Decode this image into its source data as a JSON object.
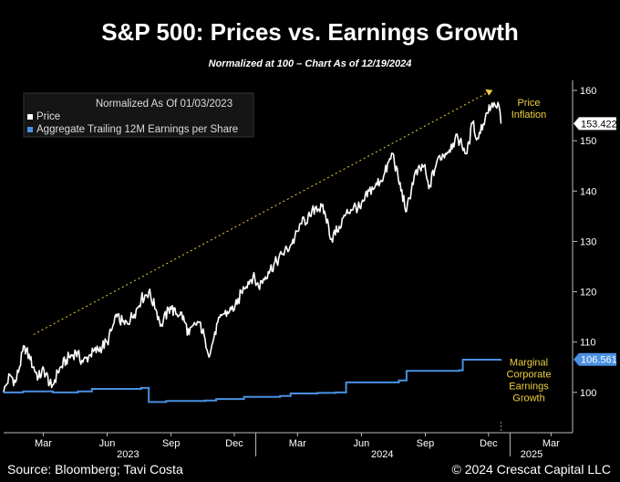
{
  "title": "S&P 500: Prices vs. Earnings Growth",
  "subtitle": "Normalized at 100 – Chart As of 12/19/2024",
  "footer": {
    "source": "Source: Bloomberg; Tavi Costa",
    "copyright": "© 2024 Crescat Capital LLC"
  },
  "colors": {
    "price": "#ffffff",
    "earnings": "#4a90e2",
    "annotation": "#f0d040",
    "background": "#000000"
  },
  "chart_data": {
    "type": "line",
    "legend": {
      "title": "Normalized As Of 01/03/2023",
      "position": "top-left",
      "entries": [
        {
          "name": "Price",
          "color": "#ffffff"
        },
        {
          "name": "Aggregate Trailing 12M Earnings per Share",
          "color": "#4a90e2"
        }
      ]
    },
    "ylim": [
      92,
      162
    ],
    "y_ticks": [
      100,
      110,
      120,
      130,
      140,
      150,
      160
    ],
    "xlim": [
      "2023-01-03",
      "2025-04-01"
    ],
    "x_ticks": [
      {
        "date": "2023-03-01",
        "label": "Mar"
      },
      {
        "date": "2023-06-01",
        "label": "Jun"
      },
      {
        "date": "2023-09-01",
        "label": "Sep"
      },
      {
        "date": "2023-12-01",
        "label": "Dec"
      },
      {
        "date": "2024-03-01",
        "label": "Mar"
      },
      {
        "date": "2024-06-01",
        "label": "Jun"
      },
      {
        "date": "2024-09-01",
        "label": "Sep"
      },
      {
        "date": "2024-12-01",
        "label": "Dec"
      },
      {
        "date": "2025-03-01",
        "label": "Mar"
      }
    ],
    "year_labels": [
      {
        "date": "2023-07-01",
        "label": "2023"
      },
      {
        "date": "2024-07-01",
        "label": "2024"
      },
      {
        "date": "2025-02-01",
        "label": "2025"
      }
    ],
    "year_separators": [
      "2024-01-01",
      "2025-01-01"
    ],
    "series": [
      {
        "name": "Price",
        "last_value_label": "153.4222",
        "points": [
          [
            "2023-01-03",
            100.0
          ],
          [
            "2023-01-12",
            103.5
          ],
          [
            "2023-01-20",
            102.0
          ],
          [
            "2023-02-02",
            109.2
          ],
          [
            "2023-02-10",
            106.5
          ],
          [
            "2023-02-22",
            103.0
          ],
          [
            "2023-03-02",
            104.5
          ],
          [
            "2023-03-13",
            101.0
          ],
          [
            "2023-03-22",
            104.0
          ],
          [
            "2023-04-03",
            106.5
          ],
          [
            "2023-04-17",
            108.0
          ],
          [
            "2023-04-27",
            106.0
          ],
          [
            "2023-05-08",
            107.5
          ],
          [
            "2023-05-19",
            108.5
          ],
          [
            "2023-06-01",
            110.0
          ],
          [
            "2023-06-15",
            115.0
          ],
          [
            "2023-06-26",
            113.5
          ],
          [
            "2023-07-10",
            115.5
          ],
          [
            "2023-07-20",
            118.5
          ],
          [
            "2023-07-31",
            120.0
          ],
          [
            "2023-08-10",
            116.5
          ],
          [
            "2023-08-18",
            113.5
          ],
          [
            "2023-08-31",
            117.0
          ],
          [
            "2023-09-08",
            115.5
          ],
          [
            "2023-09-15",
            116.0
          ],
          [
            "2023-09-27",
            111.5
          ],
          [
            "2023-10-06",
            113.5
          ],
          [
            "2023-10-12",
            114.0
          ],
          [
            "2023-10-20",
            110.5
          ],
          [
            "2023-10-27",
            107.5
          ],
          [
            "2023-11-03",
            112.0
          ],
          [
            "2023-11-14",
            115.5
          ],
          [
            "2023-11-24",
            116.0
          ],
          [
            "2023-12-05",
            117.5
          ],
          [
            "2023-12-14",
            121.0
          ],
          [
            "2023-12-28",
            123.0
          ],
          [
            "2024-01-05",
            121.0
          ],
          [
            "2024-01-19",
            124.0
          ],
          [
            "2024-01-31",
            126.0
          ],
          [
            "2024-02-09",
            127.5
          ],
          [
            "2024-02-22",
            129.5
          ],
          [
            "2024-03-07",
            133.5
          ],
          [
            "2024-03-19",
            135.0
          ],
          [
            "2024-03-28",
            137.0
          ],
          [
            "2024-04-09",
            136.0
          ],
          [
            "2024-04-19",
            130.5
          ],
          [
            "2024-04-30",
            133.0
          ],
          [
            "2024-05-10",
            135.5
          ],
          [
            "2024-05-21",
            137.0
          ],
          [
            "2024-05-31",
            136.5
          ],
          [
            "2024-06-12",
            140.0
          ],
          [
            "2024-06-21",
            141.0
          ],
          [
            "2024-07-03",
            143.0
          ],
          [
            "2024-07-16",
            147.5
          ],
          [
            "2024-07-24",
            142.5
          ],
          [
            "2024-08-05",
            136.0
          ],
          [
            "2024-08-16",
            143.0
          ],
          [
            "2024-08-30",
            145.0
          ],
          [
            "2024-09-06",
            140.5
          ],
          [
            "2024-09-19",
            146.5
          ],
          [
            "2024-09-30",
            147.5
          ],
          [
            "2024-10-11",
            149.5
          ],
          [
            "2024-10-18",
            150.5
          ],
          [
            "2024-10-31",
            147.5
          ],
          [
            "2024-11-08",
            153.5
          ],
          [
            "2024-11-15",
            150.5
          ],
          [
            "2024-11-29",
            155.5
          ],
          [
            "2024-12-06",
            157.5
          ],
          [
            "2024-12-13",
            156.5
          ],
          [
            "2024-12-16",
            157.0
          ],
          [
            "2024-12-19",
            153.4
          ]
        ]
      },
      {
        "name": "Aggregate Trailing 12M Earnings per Share",
        "last_value_label": "106.561",
        "points": [
          [
            "2023-01-03",
            100.0
          ],
          [
            "2023-01-31",
            100.2
          ],
          [
            "2023-03-15",
            100.0
          ],
          [
            "2023-04-20",
            100.2
          ],
          [
            "2023-05-10",
            100.7
          ],
          [
            "2023-07-20",
            100.9
          ],
          [
            "2023-07-31",
            98.1
          ],
          [
            "2023-08-25",
            98.3
          ],
          [
            "2023-10-20",
            98.4
          ],
          [
            "2023-11-05",
            98.7
          ],
          [
            "2023-12-15",
            99.1
          ],
          [
            "2024-02-05",
            99.3
          ],
          [
            "2024-02-20",
            99.8
          ],
          [
            "2024-03-30",
            99.9
          ],
          [
            "2024-04-25",
            100.0
          ],
          [
            "2024-05-10",
            102.0
          ],
          [
            "2024-07-25",
            102.4
          ],
          [
            "2024-08-05",
            104.3
          ],
          [
            "2024-10-20",
            104.4
          ],
          [
            "2024-10-25",
            106.5
          ],
          [
            "2024-12-19",
            106.56
          ]
        ]
      }
    ],
    "annotations": [
      {
        "text_lines": [
          "Price",
          "Inflation"
        ],
        "anchor_date": "2025-01-25",
        "anchor_value": 156.5
      },
      {
        "text_lines": [
          "Marginal",
          "Corporate",
          "Earnings",
          "Growth"
        ],
        "anchor_date": "2025-01-25",
        "anchor_value": 102.5
      }
    ],
    "trend_line": {
      "from": [
        "2023-02-15",
        111.5
      ],
      "to": [
        "2024-11-29",
        159.5
      ],
      "style": "dotted"
    }
  }
}
